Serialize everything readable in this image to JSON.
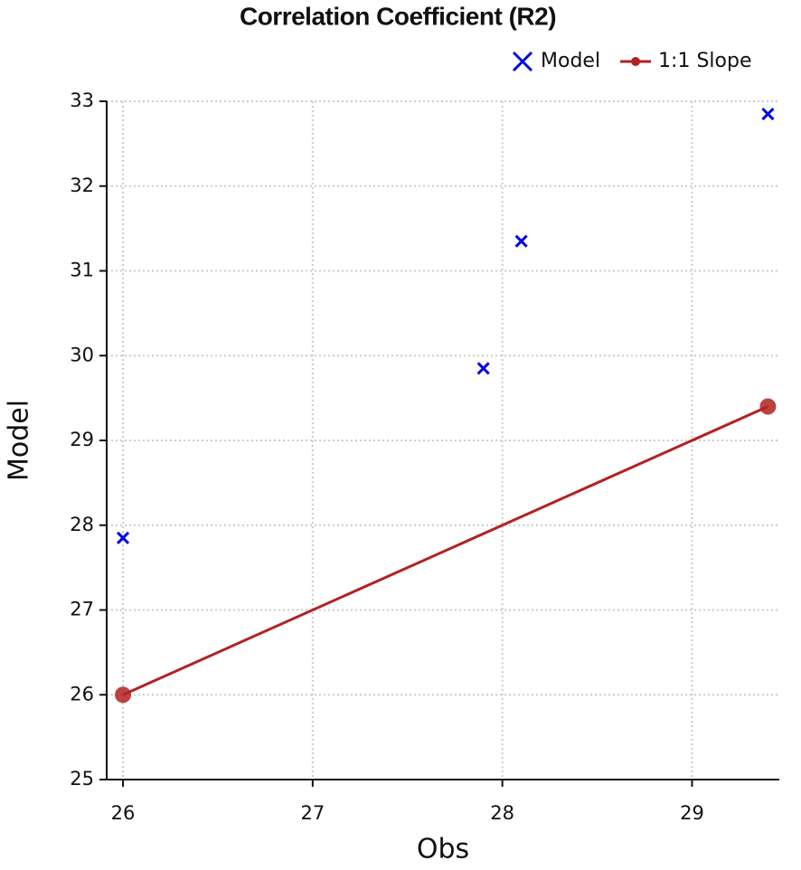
{
  "chart_data": {
    "type": "scatter",
    "title": "Correlation Coefficient (R2)",
    "x_label": "Obs",
    "y_label": "Model",
    "xlim": [
      25.914,
      29.46
    ],
    "ylim": [
      25,
      33
    ],
    "xticks": [
      26,
      27,
      28,
      29
    ],
    "yticks": [
      25,
      26,
      27,
      28,
      29,
      30,
      31,
      32,
      33
    ],
    "grid": true,
    "legend": "upper right",
    "series": [
      {
        "name": "Model",
        "color": "#0000e6",
        "marker": "x",
        "line": false,
        "x": [
          26,
          27.9,
          28.1,
          29.4
        ],
        "values": [
          27.85,
          29.85,
          31.35,
          32.85
        ]
      },
      {
        "name": "1:1 Slope",
        "color": "#b22222",
        "marker": "circle",
        "line": true,
        "x": [
          26,
          29.4
        ],
        "values": [
          26,
          29.4
        ]
      }
    ]
  }
}
